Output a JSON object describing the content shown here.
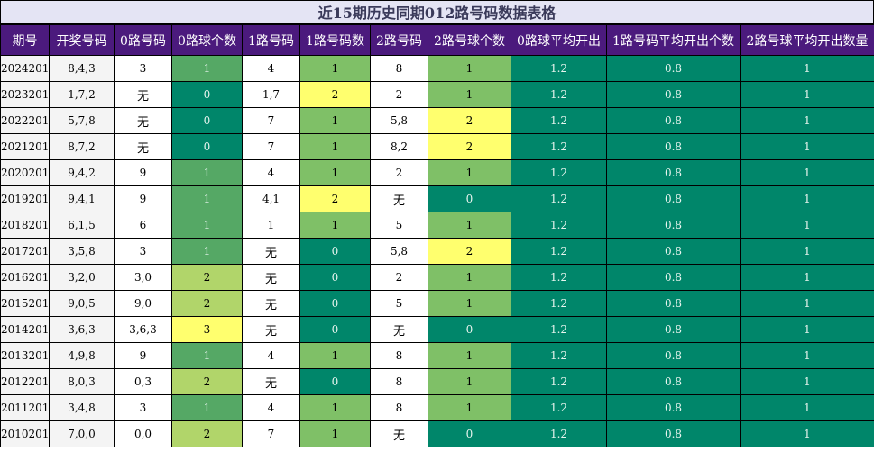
{
  "title": "近15期历史同期012路号码数据表格",
  "headers": [
    "期号",
    "开奖号码",
    "0路号码",
    "0路球个数",
    "1路号码",
    "1路号码数",
    "2路号码",
    "2路号球个数",
    "0路球平均开出",
    "1路号码平均开出个数",
    "2路号球平均开出数量"
  ],
  "rows": [
    {
      "period": "2024201",
      "draw": "8,4,3",
      "z0": "3",
      "z0n": "1",
      "z1": "4",
      "z1n": "1",
      "z2": "8",
      "z2n": "1",
      "a0": "1.2",
      "a1": "0.8",
      "a2": "1"
    },
    {
      "period": "2023201",
      "draw": "1,7,2",
      "z0": "无",
      "z0n": "0",
      "z1": "1,7",
      "z1n": "2",
      "z2": "2",
      "z2n": "1",
      "a0": "1.2",
      "a1": "0.8",
      "a2": "1"
    },
    {
      "period": "2022201",
      "draw": "5,7,8",
      "z0": "无",
      "z0n": "0",
      "z1": "7",
      "z1n": "1",
      "z2": "5,8",
      "z2n": "2",
      "a0": "1.2",
      "a1": "0.8",
      "a2": "1"
    },
    {
      "period": "2021201",
      "draw": "8,7,2",
      "z0": "无",
      "z0n": "0",
      "z1": "7",
      "z1n": "1",
      "z2": "8,2",
      "z2n": "2",
      "a0": "1.2",
      "a1": "0.8",
      "a2": "1"
    },
    {
      "period": "2020201",
      "draw": "9,4,2",
      "z0": "9",
      "z0n": "1",
      "z1": "4",
      "z1n": "1",
      "z2": "2",
      "z2n": "1",
      "a0": "1.2",
      "a1": "0.8",
      "a2": "1"
    },
    {
      "period": "2019201",
      "draw": "9,4,1",
      "z0": "9",
      "z0n": "1",
      "z1": "4,1",
      "z1n": "2",
      "z2": "无",
      "z2n": "0",
      "a0": "1.2",
      "a1": "0.8",
      "a2": "1"
    },
    {
      "period": "2018201",
      "draw": "6,1,5",
      "z0": "6",
      "z0n": "1",
      "z1": "1",
      "z1n": "1",
      "z2": "5",
      "z2n": "1",
      "a0": "1.2",
      "a1": "0.8",
      "a2": "1"
    },
    {
      "period": "2017201",
      "draw": "3,5,8",
      "z0": "3",
      "z0n": "1",
      "z1": "无",
      "z1n": "0",
      "z2": "5,8",
      "z2n": "2",
      "a0": "1.2",
      "a1": "0.8",
      "a2": "1"
    },
    {
      "period": "2016201",
      "draw": "3,2,0",
      "z0": "3,0",
      "z0n": "2",
      "z1": "无",
      "z1n": "0",
      "z2": "2",
      "z2n": "1",
      "a0": "1.2",
      "a1": "0.8",
      "a2": "1"
    },
    {
      "period": "2015201",
      "draw": "9,0,5",
      "z0": "9,0",
      "z0n": "2",
      "z1": "无",
      "z1n": "0",
      "z2": "5",
      "z2n": "1",
      "a0": "1.2",
      "a1": "0.8",
      "a2": "1"
    },
    {
      "period": "2014201",
      "draw": "3,6,3",
      "z0": "3,6,3",
      "z0n": "3",
      "z1": "无",
      "z1n": "0",
      "z2": "无",
      "z2n": "0",
      "a0": "1.2",
      "a1": "0.8",
      "a2": "1"
    },
    {
      "period": "2013201",
      "draw": "4,9,8",
      "z0": "9",
      "z0n": "1",
      "z1": "4",
      "z1n": "1",
      "z2": "8",
      "z2n": "1",
      "a0": "1.2",
      "a1": "0.8",
      "a2": "1"
    },
    {
      "period": "2012201",
      "draw": "8,0,3",
      "z0": "0,3",
      "z0n": "2",
      "z1": "无",
      "z1n": "0",
      "z2": "8",
      "z2n": "1",
      "a0": "1.2",
      "a1": "0.8",
      "a2": "1"
    },
    {
      "period": "2011201",
      "draw": "3,4,8",
      "z0": "3",
      "z0n": "1",
      "z1": "4",
      "z1n": "1",
      "z2": "8",
      "z2n": "1",
      "a0": "1.2",
      "a1": "0.8",
      "a2": "1"
    },
    {
      "period": "2010201",
      "draw": "7,0,0",
      "z0": "0,0",
      "z0n": "2",
      "z1": "7",
      "z1n": "1",
      "z2": "无",
      "z2n": "0",
      "a0": "1.2",
      "a1": "0.8",
      "a2": "1"
    }
  ]
}
